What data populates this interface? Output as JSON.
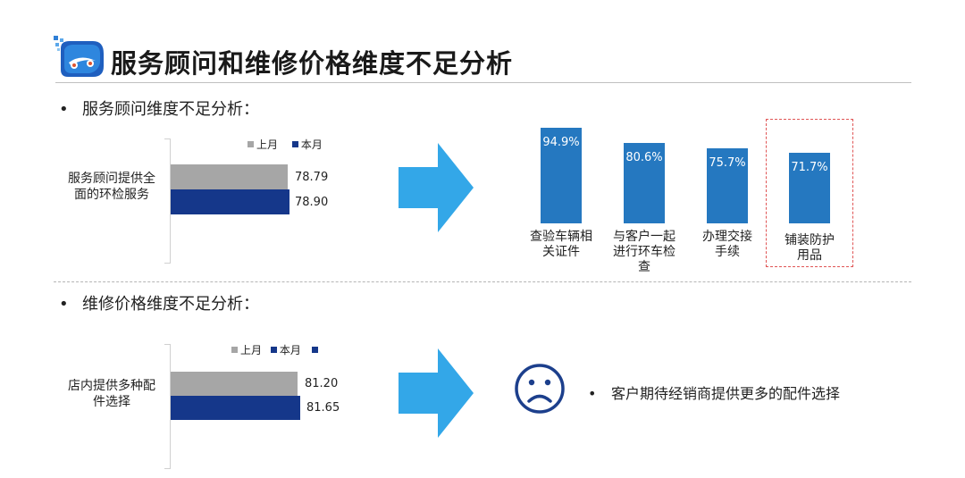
{
  "colors": {
    "last_month": "#a6a6a6",
    "this_month": "#15378a",
    "column": "#2578c0",
    "arrow": "#33a7e8",
    "highlight_border": "#e05555",
    "sad_face": "#1c3f8c"
  },
  "header": {
    "title": "服务顾问和维修价格维度不足分析",
    "logo_icon": "car-logo-icon"
  },
  "section1": {
    "heading": "服务顾问维度不足分析："
  },
  "section2": {
    "heading": "维修价格维度不足分析：",
    "note": "客户期待经销商提供更多的配件选择",
    "face_icon": "sad-face-icon"
  },
  "chart_data": [
    {
      "type": "bar",
      "orientation": "horizontal",
      "categories": [
        "服务顾问提供全面的环检服务"
      ],
      "category_lines": [
        "服务顾问提供全",
        "面的环检服务"
      ],
      "series": [
        {
          "name": "上月",
          "values": [
            78.79
          ],
          "labels": [
            "78.79"
          ]
        },
        {
          "name": "本月",
          "values": [
            78.9
          ],
          "labels": [
            "78.90"
          ]
        }
      ],
      "legend": [
        "上月",
        "本月"
      ],
      "legend_placement": "top"
    },
    {
      "type": "bar",
      "categories": [
        "查验车辆相关证件",
        "与客户一起进行环车检查",
        "办理交接手续",
        "铺装防护用品"
      ],
      "category_lines": [
        [
          "查验车辆相",
          "关证件"
        ],
        [
          "与客户一起",
          "进行环车检",
          "查"
        ],
        [
          "办理交接",
          "手续"
        ],
        [
          "铺装防护",
          "用品"
        ]
      ],
      "values": [
        94.9,
        80.6,
        75.7,
        71.7
      ],
      "labels": [
        "94.9%",
        "80.6%",
        "75.7%",
        "71.7%"
      ],
      "highlighted": "铺装防护用品",
      "ylim": [
        0,
        100
      ]
    },
    {
      "type": "bar",
      "orientation": "horizontal",
      "categories": [
        "店内提供多种配件选择"
      ],
      "category_lines": [
        "店内提供多种配",
        "件选择"
      ],
      "series": [
        {
          "name": "上月",
          "values": [
            81.2
          ],
          "labels": [
            "81.20"
          ]
        },
        {
          "name": "本月",
          "values": [
            81.65
          ],
          "labels": [
            "81.65"
          ]
        }
      ],
      "legend": [
        "上月",
        "本月"
      ],
      "legend_placement": "top"
    }
  ]
}
